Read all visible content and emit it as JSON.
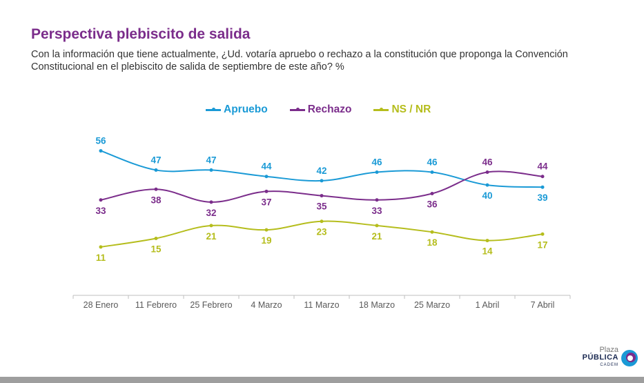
{
  "header": {
    "title": "Perspectiva plebiscito de salida",
    "subtitle": "Con la información que tiene actualmente, ¿Ud. votaría apruebo o rechazo a la constitución que proponga la Convención Constitucional en el plebiscito de salida de septiembre de este año? %"
  },
  "logo": {
    "line1": "Plaza",
    "line2": "PÚBLICA",
    "line3": "CADEM"
  },
  "chart_data": {
    "type": "line",
    "categories": [
      "28 Enero",
      "11 Febrero",
      "25 Febrero",
      "4 Marzo",
      "11 Marzo",
      "18 Marzo",
      "25 Marzo",
      "1 Abril",
      "7 Abril"
    ],
    "series": [
      {
        "name": "Apruebo",
        "color": "#1a9ad6",
        "values": [
          56,
          47,
          47,
          44,
          42,
          46,
          46,
          40,
          39
        ],
        "labels": [
          "above",
          "above",
          "above",
          "above",
          "above",
          "above",
          "above",
          "below",
          "below"
        ]
      },
      {
        "name": "Rechazo",
        "color": "#7b2d8b",
        "values": [
          33,
          38,
          32,
          37,
          35,
          33,
          36,
          46,
          44
        ],
        "labels": [
          "below",
          "below",
          "below",
          "below",
          "below",
          "below",
          "below",
          "above",
          "above"
        ]
      },
      {
        "name": "NS / NR",
        "color": "#b5bd1c",
        "values": [
          11,
          15,
          21,
          19,
          23,
          21,
          18,
          14,
          17
        ],
        "labels": [
          "below",
          "below",
          "below",
          "below",
          "below",
          "below",
          "below",
          "below",
          "below"
        ]
      }
    ],
    "legend_position": "top",
    "grid": false,
    "ylim": [
      -1,
      62
    ]
  }
}
